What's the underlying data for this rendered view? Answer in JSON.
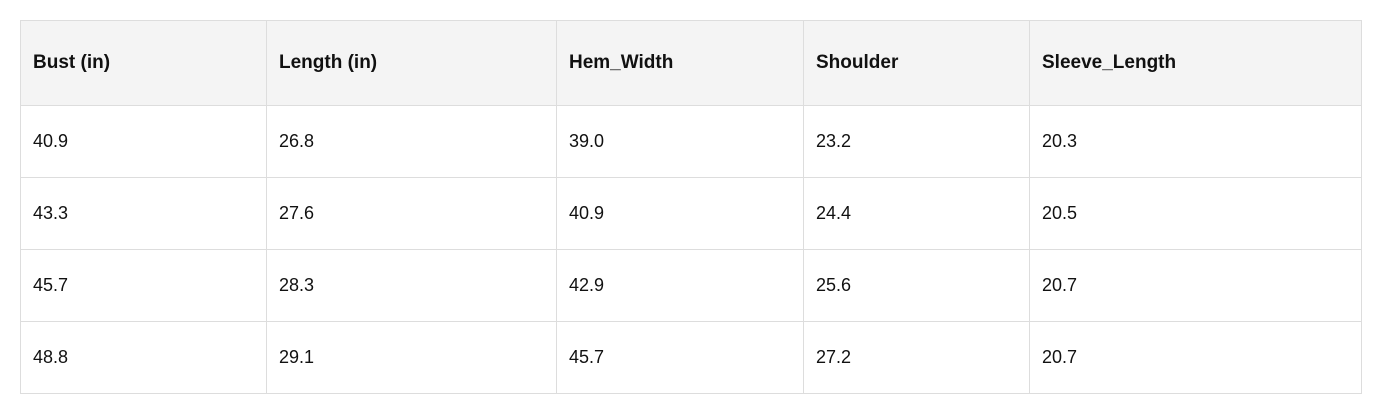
{
  "table": {
    "header": [
      "Bust (in)",
      "Length (in)",
      "Hem_Width",
      "Shoulder",
      "Sleeve_Length"
    ],
    "rows": [
      [
        "40.9",
        "26.8",
        "39.0",
        "23.2",
        "20.3"
      ],
      [
        "43.3",
        "27.6",
        "40.9",
        "24.4",
        "20.5"
      ],
      [
        "45.7",
        "28.3",
        "42.9",
        "25.6",
        "20.7"
      ],
      [
        "48.8",
        "29.1",
        "45.7",
        "27.2",
        "20.7"
      ]
    ]
  }
}
